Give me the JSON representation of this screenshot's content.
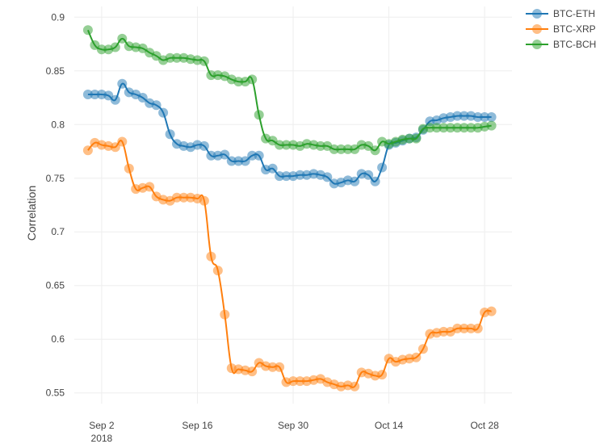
{
  "chart_data": {
    "type": "line",
    "title": "",
    "xlabel": "",
    "ylabel": "Correlation",
    "ylim": [
      0.54,
      0.91
    ],
    "xlim": [
      "2018-08-29",
      "2018-11-01"
    ],
    "grid": true,
    "legend_position": "top-right",
    "x_ticks": [
      {
        "date": "2018-09-02",
        "label": "Sep 2",
        "sublabel": "2018"
      },
      {
        "date": "2018-09-16",
        "label": "Sep 16",
        "sublabel": ""
      },
      {
        "date": "2018-09-30",
        "label": "Sep 30",
        "sublabel": ""
      },
      {
        "date": "2018-10-14",
        "label": "Oct 14",
        "sublabel": ""
      },
      {
        "date": "2018-10-28",
        "label": "Oct 28",
        "sublabel": ""
      }
    ],
    "y_ticks": [
      {
        "value": 0.55,
        "label": "0.55"
      },
      {
        "value": 0.6,
        "label": "0.6"
      },
      {
        "value": 0.65,
        "label": "0.65"
      },
      {
        "value": 0.7,
        "label": "0.7"
      },
      {
        "value": 0.75,
        "label": "0.75"
      },
      {
        "value": 0.8,
        "label": "0.8"
      },
      {
        "value": 0.85,
        "label": "0.85"
      },
      {
        "value": 0.9,
        "label": "0.9"
      }
    ],
    "x": [
      "2018-08-31",
      "2018-09-01",
      "2018-09-02",
      "2018-09-03",
      "2018-09-04",
      "2018-09-05",
      "2018-09-06",
      "2018-09-07",
      "2018-09-08",
      "2018-09-09",
      "2018-09-10",
      "2018-09-11",
      "2018-09-12",
      "2018-09-13",
      "2018-09-14",
      "2018-09-15",
      "2018-09-16",
      "2018-09-17",
      "2018-09-18",
      "2018-09-19",
      "2018-09-20",
      "2018-09-21",
      "2018-09-22",
      "2018-09-23",
      "2018-09-24",
      "2018-09-25",
      "2018-09-26",
      "2018-09-27",
      "2018-09-28",
      "2018-09-29",
      "2018-09-30",
      "2018-10-01",
      "2018-10-02",
      "2018-10-03",
      "2018-10-04",
      "2018-10-05",
      "2018-10-06",
      "2018-10-07",
      "2018-10-08",
      "2018-10-09",
      "2018-10-10",
      "2018-10-11",
      "2018-10-12",
      "2018-10-13",
      "2018-10-14",
      "2018-10-15",
      "2018-10-16",
      "2018-10-17",
      "2018-10-18",
      "2018-10-19",
      "2018-10-20",
      "2018-10-21",
      "2018-10-22",
      "2018-10-23",
      "2018-10-24",
      "2018-10-25",
      "2018-10-26",
      "2018-10-27",
      "2018-10-28",
      "2018-10-29"
    ],
    "series": [
      {
        "name": "BTC-ETH",
        "color": "#1f77b4",
        "values": [
          0.828,
          0.828,
          0.828,
          0.827,
          0.823,
          0.838,
          0.83,
          0.828,
          0.825,
          0.82,
          0.818,
          0.811,
          0.791,
          0.782,
          0.78,
          0.779,
          0.781,
          0.78,
          0.771,
          0.771,
          0.772,
          0.766,
          0.766,
          0.766,
          0.771,
          0.771,
          0.758,
          0.759,
          0.752,
          0.752,
          0.752,
          0.753,
          0.753,
          0.754,
          0.753,
          0.751,
          0.745,
          0.746,
          0.748,
          0.747,
          0.754,
          0.753,
          0.747,
          0.76,
          0.781,
          0.783,
          0.785,
          0.787,
          0.788,
          0.795,
          0.803,
          0.804,
          0.806,
          0.807,
          0.808,
          0.808,
          0.808,
          0.807,
          0.807,
          0.807
        ]
      },
      {
        "name": "BTC-XRP",
        "color": "#ff7f0e",
        "values": [
          0.776,
          0.783,
          0.781,
          0.78,
          0.779,
          0.784,
          0.759,
          0.74,
          0.741,
          0.742,
          0.733,
          0.73,
          0.729,
          0.732,
          0.732,
          0.732,
          0.731,
          0.729,
          0.677,
          0.664,
          0.623,
          0.573,
          0.572,
          0.571,
          0.57,
          0.578,
          0.575,
          0.574,
          0.574,
          0.56,
          0.561,
          0.561,
          0.561,
          0.562,
          0.563,
          0.56,
          0.558,
          0.556,
          0.557,
          0.556,
          0.569,
          0.568,
          0.566,
          0.567,
          0.582,
          0.579,
          0.581,
          0.582,
          0.583,
          0.591,
          0.605,
          0.606,
          0.607,
          0.607,
          0.61,
          0.61,
          0.61,
          0.61,
          0.625,
          0.626
        ]
      },
      {
        "name": "BTC-BCH",
        "color": "#2ca02c",
        "values": [
          0.888,
          0.874,
          0.87,
          0.87,
          0.872,
          0.88,
          0.873,
          0.872,
          0.871,
          0.867,
          0.864,
          0.86,
          0.862,
          0.862,
          0.862,
          0.861,
          0.86,
          0.859,
          0.846,
          0.846,
          0.845,
          0.842,
          0.84,
          0.84,
          0.842,
          0.809,
          0.787,
          0.785,
          0.781,
          0.781,
          0.781,
          0.78,
          0.782,
          0.781,
          0.78,
          0.78,
          0.777,
          0.777,
          0.777,
          0.777,
          0.781,
          0.78,
          0.776,
          0.784,
          0.782,
          0.784,
          0.786,
          0.787,
          0.787,
          0.796,
          0.797,
          0.797,
          0.797,
          0.797,
          0.797,
          0.797,
          0.797,
          0.797,
          0.798,
          0.799
        ]
      }
    ]
  }
}
